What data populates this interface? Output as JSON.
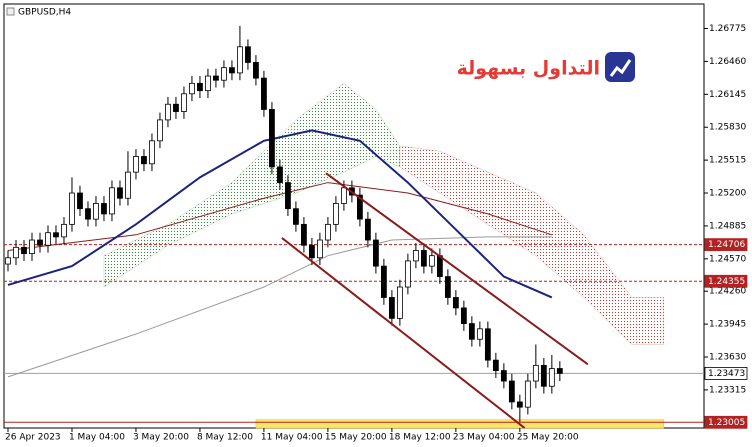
{
  "chart_data": {
    "type": "candlestick",
    "title": "GBPUSD,H4",
    "logo": "التداول بسهولة",
    "categories": [
      "26 Apr 2023",
      null,
      null,
      null,
      null,
      null,
      null,
      null,
      "1 May 04:00",
      null,
      null,
      null,
      null,
      null,
      null,
      null,
      "3 May 20:00",
      null,
      null,
      null,
      null,
      null,
      null,
      null,
      "8 May 12:00",
      null,
      null,
      null,
      null,
      null,
      null,
      null,
      "11 May 04:00",
      null,
      null,
      null,
      null,
      null,
      null,
      null,
      "15 May 20:00",
      null,
      null,
      null,
      null,
      null,
      null,
      null,
      "18 May 12:00",
      null,
      null,
      null,
      null,
      null,
      null,
      null,
      "23 May 04:00",
      null,
      null,
      null,
      null,
      null,
      null,
      null,
      "25 May 20:00",
      null,
      null,
      null,
      null,
      null
    ],
    "open": [
      1.2452,
      1.2458,
      1.2468,
      1.2462,
      1.2475,
      1.247,
      1.2482,
      1.2478,
      1.249,
      1.252,
      1.2505,
      1.2495,
      1.251,
      1.25,
      1.2525,
      1.2515,
      1.254,
      1.2555,
      1.2548,
      1.257,
      1.259,
      1.2605,
      1.2598,
      1.2615,
      1.2625,
      1.2618,
      1.2632,
      1.2628,
      1.264,
      1.2635,
      1.266,
      1.2645,
      1.263,
      1.26,
      1.2545,
      1.253,
      1.2505,
      1.249,
      1.247,
      1.2458,
      1.2475,
      1.249,
      1.251,
      1.2525,
      1.2518,
      1.2495,
      1.2475,
      1.245,
      1.242,
      1.24,
      1.243,
      1.2455,
      1.2465,
      1.245,
      1.246,
      1.244,
      1.242,
      1.241,
      1.2395,
      1.238,
      1.239,
      1.236,
      1.235,
      1.234,
      1.232,
      1.2315,
      1.234,
      1.2355,
      1.2335,
      1.2352
    ],
    "high": [
      1.2465,
      1.2475,
      1.2475,
      1.2482,
      1.2482,
      1.2489,
      1.2489,
      1.2497,
      1.2535,
      1.2527,
      1.2512,
      1.2517,
      1.2517,
      1.2532,
      1.2532,
      1.256,
      1.2562,
      1.2562,
      1.2577,
      1.2597,
      1.2612,
      1.2612,
      1.2622,
      1.2632,
      1.2632,
      1.2639,
      1.2639,
      1.2647,
      1.2647,
      1.268,
      1.2667,
      1.2652,
      1.2637,
      1.2607,
      1.2552,
      1.2537,
      1.2512,
      1.2497,
      1.2477,
      1.2482,
      1.2497,
      1.2517,
      1.2532,
      1.2532,
      1.2525,
      1.2502,
      1.2482,
      1.2457,
      1.2427,
      1.2437,
      1.2462,
      1.2472,
      1.2472,
      1.2467,
      1.2467,
      1.2447,
      1.2427,
      1.2417,
      1.2402,
      1.2397,
      1.2397,
      1.2367,
      1.2357,
      1.2347,
      1.2327,
      1.2347,
      1.2375,
      1.2362,
      1.2365,
      1.2359
    ],
    "low": [
      1.2445,
      1.2451,
      1.2455,
      1.2455,
      1.2463,
      1.2463,
      1.2471,
      1.2471,
      1.2483,
      1.2498,
      1.2488,
      1.2488,
      1.2493,
      1.2493,
      1.2508,
      1.2508,
      1.2533,
      1.2541,
      1.2541,
      1.2563,
      1.2583,
      1.2591,
      1.2591,
      1.2608,
      1.2611,
      1.2611,
      1.2621,
      1.2621,
      1.2628,
      1.2628,
      1.2638,
      1.2623,
      1.2593,
      1.2538,
      1.2523,
      1.2498,
      1.2483,
      1.2463,
      1.2451,
      1.2451,
      1.2468,
      1.2483,
      1.2503,
      1.2511,
      1.2488,
      1.2468,
      1.2443,
      1.2413,
      1.2393,
      1.2393,
      1.2423,
      1.2448,
      1.2443,
      1.2443,
      1.2433,
      1.2413,
      1.2403,
      1.2388,
      1.2373,
      1.2373,
      1.2353,
      1.2343,
      1.2333,
      1.2313,
      1.2301,
      1.2308,
      1.2333,
      1.2328,
      1.2328,
      1.234
    ],
    "close": [
      1.2458,
      1.2468,
      1.2462,
      1.2475,
      1.247,
      1.2482,
      1.2478,
      1.249,
      1.252,
      1.2505,
      1.2495,
      1.251,
      1.25,
      1.2525,
      1.2515,
      1.254,
      1.2555,
      1.2548,
      1.257,
      1.259,
      1.2605,
      1.2598,
      1.2615,
      1.2625,
      1.2618,
      1.2632,
      1.2628,
      1.264,
      1.2635,
      1.266,
      1.2645,
      1.263,
      1.26,
      1.2545,
      1.253,
      1.2505,
      1.249,
      1.247,
      1.2458,
      1.2475,
      1.249,
      1.251,
      1.2525,
      1.2518,
      1.2495,
      1.2475,
      1.245,
      1.242,
      1.24,
      1.243,
      1.2455,
      1.2465,
      1.245,
      1.246,
      1.244,
      1.242,
      1.241,
      1.2395,
      1.238,
      1.239,
      1.236,
      1.235,
      1.234,
      1.232,
      1.2315,
      1.234,
      1.2355,
      1.2335,
      1.2352,
      1.23473
    ],
    "xlim": [
      -1,
      86.9
    ],
    "ylim": [
      1.2296,
      1.27
    ],
    "yticks": [
      1.26775,
      {
        "value": 1.2646,
        "label": "1.26460"
      },
      1.26145,
      {
        "value": 1.2583,
        "label": "1.25830"
      },
      1.25515,
      {
        "value": 1.252,
        "label": "1.25200"
      },
      1.24885,
      {
        "value": 1.2457,
        "label": "1.24570"
      },
      {
        "value": 1.2426,
        "label": "1.24260"
      },
      1.23945,
      {
        "value": 1.2363,
        "label": "1.23630"
      },
      1.23315
    ],
    "clouds": [
      {
        "color": "#2e8b2e",
        "x": [
          12,
          20,
          28,
          36,
          42,
          46,
          49
        ],
        "upper": [
          1.246,
          1.249,
          1.253,
          1.259,
          1.2625,
          1.26,
          1.2565
        ],
        "lower": [
          1.243,
          1.247,
          1.25,
          1.252,
          1.254,
          1.2555,
          1.2545
        ]
      },
      {
        "color": "#c0392b",
        "x": [
          49,
          54,
          60,
          66,
          72,
          78,
          82
        ],
        "upper": [
          1.2565,
          1.256,
          1.254,
          1.252,
          1.248,
          1.242,
          1.242
        ],
        "lower": [
          1.2545,
          1.252,
          1.249,
          1.246,
          1.242,
          1.2375,
          1.2375
        ]
      }
    ],
    "lines": [
      {
        "color": "#9a9a9a",
        "thick": false,
        "x": [
          0,
          16,
          32,
          40,
          48,
          60,
          68
        ],
        "values": [
          1.2344,
          1.2385,
          1.243,
          1.246,
          1.2475,
          1.2478,
          1.2478
        ]
      },
      {
        "color": "#8b1a1a",
        "thick": false,
        "x": [
          0,
          16,
          32,
          40,
          50,
          60,
          68
        ],
        "values": [
          1.2465,
          1.248,
          1.2515,
          1.253,
          1.252,
          1.25,
          1.248
        ]
      },
      {
        "color": "#1a237e",
        "thick": true,
        "x": [
          0,
          8,
          16,
          24,
          32,
          38,
          44,
          50,
          56,
          62,
          68
        ],
        "values": [
          1.2432,
          1.245,
          1.249,
          1.2535,
          1.257,
          1.258,
          1.257,
          1.253,
          1.2485,
          1.244,
          1.242
        ]
      }
    ],
    "trendlines": [
      {
        "color": "#8b1a1a",
        "x": [
          39.75,
          72.5
        ],
        "values": [
          1.2539,
          1.2356
        ]
      },
      {
        "color": "#8b1a1a",
        "x": [
          34.25,
          64.6
        ],
        "values": [
          1.2477,
          1.2295
        ]
      }
    ],
    "zone": {
      "color": "#ffe566",
      "x": [
        31,
        82
      ],
      "low": 1.2295,
      "high": 1.2303
    },
    "levels": [
      {
        "value": 1.24706,
        "color": "#b22222",
        "dashed": true
      },
      {
        "value": 1.24355,
        "color": "#b22222",
        "dashed": true
      },
      {
        "value": 1.23473,
        "color": "#a0a0a0",
        "dashed": false
      },
      {
        "value": 1.23005,
        "color": "#b22222",
        "dashed": false
      }
    ]
  }
}
